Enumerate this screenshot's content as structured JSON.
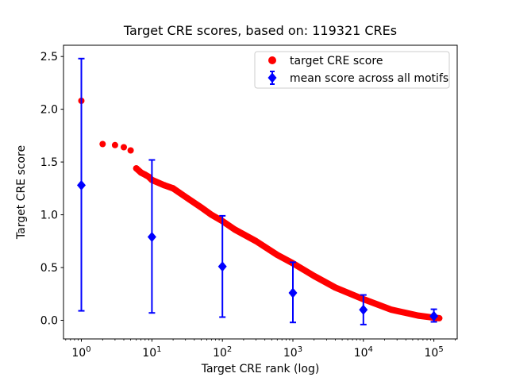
{
  "window": {
    "background": "#ffffff"
  },
  "chart_data": {
    "type": "scatter",
    "title": "Target CRE scores, based on: 119321 CREs",
    "xlabel": "Target CRE rank (log)",
    "ylabel": "Target CRE score",
    "n_cres": 119321,
    "x_scale": "log",
    "x_log_range": [
      -0.2538,
      5.3306
    ],
    "y_range": [
      -0.1765,
      2.6065
    ],
    "x_tick_exponents": [
      0,
      1,
      2,
      3,
      4,
      5
    ],
    "x_tick_base": "10",
    "y_ticks": [
      0.0,
      0.5,
      1.0,
      1.5,
      2.0,
      2.5
    ],
    "y_tick_labels": [
      "0.0",
      "0.5",
      "1.0",
      "1.5",
      "2.0",
      "2.5"
    ],
    "grid": false,
    "text_color": "#000000",
    "legend": {
      "position": "upper right",
      "background": "#ffffff",
      "border_color": "#cccccc",
      "entries": [
        {
          "label": "target CRE score",
          "marker": "circle",
          "color": "#ff0000"
        },
        {
          "label": "mean score across all motifs",
          "marker": "diamond-errorbar",
          "color": "#0000ff"
        }
      ]
    },
    "series": [
      {
        "name": "target CRE score",
        "color": "#ff0000",
        "marker": "circle",
        "total_points": 119321,
        "dense_from_rank": 6,
        "points_rank_score": [
          [
            1,
            2.08
          ],
          [
            2,
            1.67
          ],
          [
            3,
            1.66
          ],
          [
            4,
            1.64
          ],
          [
            5,
            1.61
          ],
          [
            6,
            1.44
          ],
          [
            7,
            1.4
          ],
          [
            8,
            1.38
          ],
          [
            9,
            1.36
          ],
          [
            10,
            1.33
          ],
          [
            15,
            1.28
          ],
          [
            20,
            1.25
          ],
          [
            30,
            1.17
          ],
          [
            50,
            1.07
          ],
          [
            70,
            1.0
          ],
          [
            100,
            0.94
          ],
          [
            150,
            0.86
          ],
          [
            300,
            0.75
          ],
          [
            600,
            0.62
          ],
          [
            1000,
            0.54
          ],
          [
            2000,
            0.42
          ],
          [
            4000,
            0.31
          ],
          [
            10000,
            0.2
          ],
          [
            25000,
            0.1
          ],
          [
            60000,
            0.045
          ],
          [
            100000,
            0.025
          ],
          [
            119321,
            0.02
          ]
        ]
      },
      {
        "name": "mean score across all motifs",
        "color": "#0000ff",
        "marker": "diamond",
        "error_bars": true,
        "points": [
          {
            "rank": 1,
            "mean": 1.28,
            "lo": 0.09,
            "hi": 2.48
          },
          {
            "rank": 10,
            "mean": 0.79,
            "lo": 0.07,
            "hi": 1.52
          },
          {
            "rank": 100,
            "mean": 0.51,
            "lo": 0.03,
            "hi": 0.99
          },
          {
            "rank": 1000,
            "mean": 0.26,
            "lo": -0.02,
            "hi": 0.55
          },
          {
            "rank": 10000,
            "mean": 0.1,
            "lo": -0.04,
            "hi": 0.24
          },
          {
            "rank": 100000,
            "mean": 0.04,
            "lo": -0.015,
            "hi": 0.105
          }
        ]
      }
    ]
  }
}
